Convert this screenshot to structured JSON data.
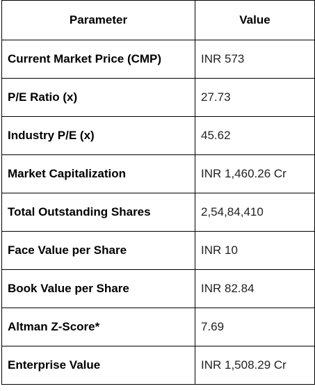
{
  "table": {
    "headers": {
      "parameter": "Parameter",
      "value": "Value"
    },
    "rows": [
      {
        "parameter": "Current Market Price (CMP)",
        "value": "INR 573"
      },
      {
        "parameter": "P/E Ratio (x)",
        "value": "27.73"
      },
      {
        "parameter": "Industry P/E (x)",
        "value": "45.62"
      },
      {
        "parameter": "Market Capitalization",
        "value": "INR 1,460.26 Cr"
      },
      {
        "parameter": "Total Outstanding Shares",
        "value": "2,54,84,410"
      },
      {
        "parameter": "Face Value per Share",
        "value": "INR 10"
      },
      {
        "parameter": "Book Value per Share",
        "value": "INR 82.84"
      },
      {
        "parameter": "Altman Z-Score*",
        "value": "7.69"
      },
      {
        "parameter": "Enterprise Value",
        "value": "INR 1,508.29 Cr"
      }
    ]
  }
}
